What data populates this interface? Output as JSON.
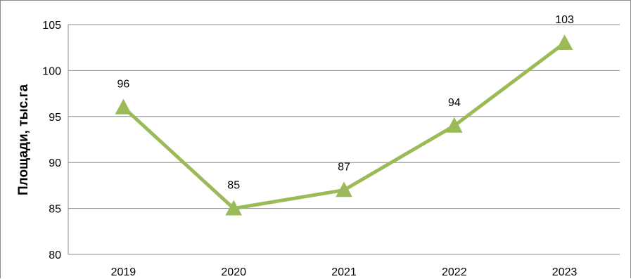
{
  "chart_data": {
    "type": "line",
    "title": "",
    "xlabel": "",
    "ylabel": "Площади, тыс.га",
    "categories": [
      "2019",
      "2020",
      "2021",
      "2022",
      "2023"
    ],
    "series": [
      {
        "values": [
          96,
          85,
          87,
          94,
          103
        ],
        "data_labels": [
          "96",
          "85",
          "87",
          "94",
          "103"
        ],
        "color": "#9bbb59",
        "marker": "triangle"
      }
    ],
    "ylim": [
      80,
      105
    ],
    "yticks": [
      "80",
      "85",
      "90",
      "95",
      "100",
      "105"
    ],
    "grid": "horizontal",
    "gridline_color": "#8c8c8c",
    "legend": "none"
  }
}
